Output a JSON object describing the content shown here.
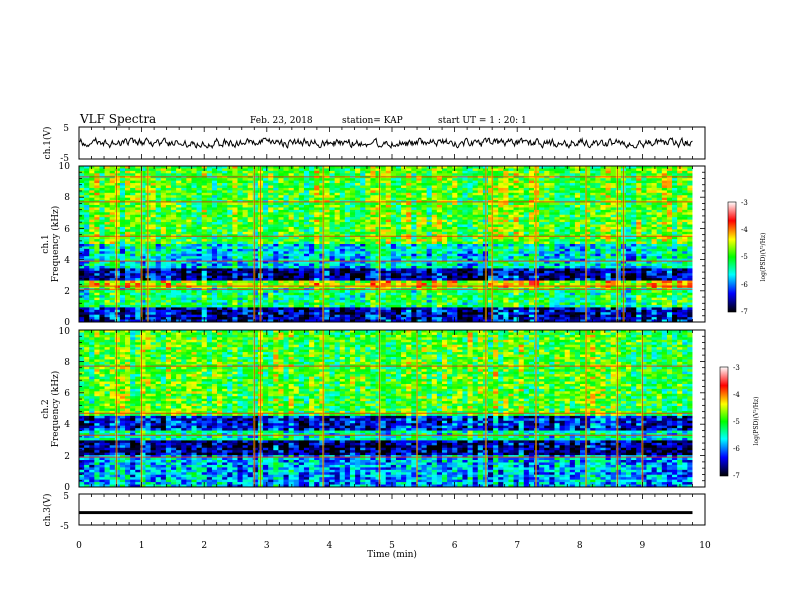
{
  "header": {
    "title": "VLF Spectra",
    "date": "Feb. 23, 2018",
    "station": "station= KAP",
    "start": "start  UT =   1 : 20: 1"
  },
  "chart_data": [
    {
      "type": "line",
      "panel": "ch1-waveform",
      "ylabel": "ch.1(V)",
      "ylim": [
        -5,
        5
      ],
      "yticks": [
        "5",
        "-5"
      ],
      "xlim": [
        0,
        10
      ],
      "x_extent": [
        0,
        9.8
      ],
      "level": 0,
      "amplitude_range": [
        -1.5,
        1.5
      ]
    },
    {
      "type": "heatmap",
      "panel": "ch1-spectrogram",
      "ylabel_top": "ch.1",
      "ylabel": "Frequency (kHz)",
      "ylim": [
        0,
        10
      ],
      "yticks": [
        "0",
        "2",
        "4",
        "6",
        "8",
        "10"
      ],
      "xlim": [
        0,
        10
      ],
      "x_extent": [
        0,
        9.8
      ],
      "colorbar": {
        "label": "log(PSD)(V²/Hz)",
        "range": [
          -7,
          -3
        ],
        "ticks": [
          "-3",
          "-4",
          "-5",
          "-6",
          "-7"
        ],
        "colors": [
          "#ffffff",
          "#ff0000",
          "#ffff00",
          "#00ff00",
          "#00ffff",
          "#0000ff",
          "#000000"
        ]
      },
      "bands_khz": [
        {
          "from": 0,
          "to": 1.0,
          "level": -6.5
        },
        {
          "from": 1.0,
          "to": 2.2,
          "level": -5.2
        },
        {
          "from": 2.2,
          "to": 2.7,
          "level": -4.5
        },
        {
          "from": 2.7,
          "to": 3.4,
          "level": -6.6
        },
        {
          "from": 3.4,
          "to": 5.0,
          "level": -5.6
        },
        {
          "from": 5.0,
          "to": 10.0,
          "level": -4.9
        }
      ],
      "lines_khz": [
        2.1,
        2.3,
        3.9,
        5.5,
        7.7,
        9.3
      ],
      "vertical_events_min": [
        0.6,
        1.0,
        1.1,
        2.8,
        2.9,
        3.9,
        4.8,
        6.5,
        6.6,
        7.3,
        8.1,
        8.6,
        8.7
      ]
    },
    {
      "type": "heatmap",
      "panel": "ch2-spectrogram",
      "ylabel_top": "ch.2",
      "ylabel": "Frequency (kHz)",
      "ylim": [
        0,
        10
      ],
      "yticks": [
        "0",
        "2",
        "4",
        "6",
        "8",
        "10"
      ],
      "xlim": [
        0,
        10
      ],
      "x_extent": [
        0,
        9.8
      ],
      "colorbar": {
        "label": "log(PSD)(V²/Hz)",
        "range": [
          -7,
          -3
        ],
        "ticks": [
          "-3",
          "-4",
          "-5",
          "-6",
          "-7"
        ],
        "colors": [
          "#ffffff",
          "#ff0000",
          "#ffff00",
          "#00ff00",
          "#00ffff",
          "#0000ff",
          "#000000"
        ]
      },
      "bands_khz": [
        {
          "from": 0,
          "to": 2.0,
          "level": -5.8
        },
        {
          "from": 2.0,
          "to": 3.0,
          "level": -6.6
        },
        {
          "from": 3.0,
          "to": 3.6,
          "level": -5.4
        },
        {
          "from": 3.6,
          "to": 4.6,
          "level": -6.3
        },
        {
          "from": 4.6,
          "to": 10.0,
          "level": -4.9
        }
      ],
      "lines_khz": [
        1.9,
        3.3,
        4.7,
        7.7
      ],
      "vertical_events_min": [
        0.6,
        1.0,
        2.8,
        2.9,
        3.9,
        4.8,
        5.4,
        6.5,
        7.3,
        8.1,
        8.6,
        9.0
      ]
    },
    {
      "type": "line",
      "panel": "ch3-waveform",
      "ylabel": "ch.3(V)",
      "ylim": [
        -5,
        5
      ],
      "yticks": [
        "5",
        "-5"
      ],
      "xlim": [
        0,
        10
      ],
      "x_extent": [
        0,
        9.8
      ],
      "level": -1.0,
      "amplitude_range": [
        -0.15,
        0.15
      ]
    }
  ],
  "xaxis": {
    "label": "Time (min)",
    "ticks": [
      "0",
      "1",
      "2",
      "3",
      "4",
      "5",
      "6",
      "7",
      "8",
      "9",
      "10"
    ]
  }
}
